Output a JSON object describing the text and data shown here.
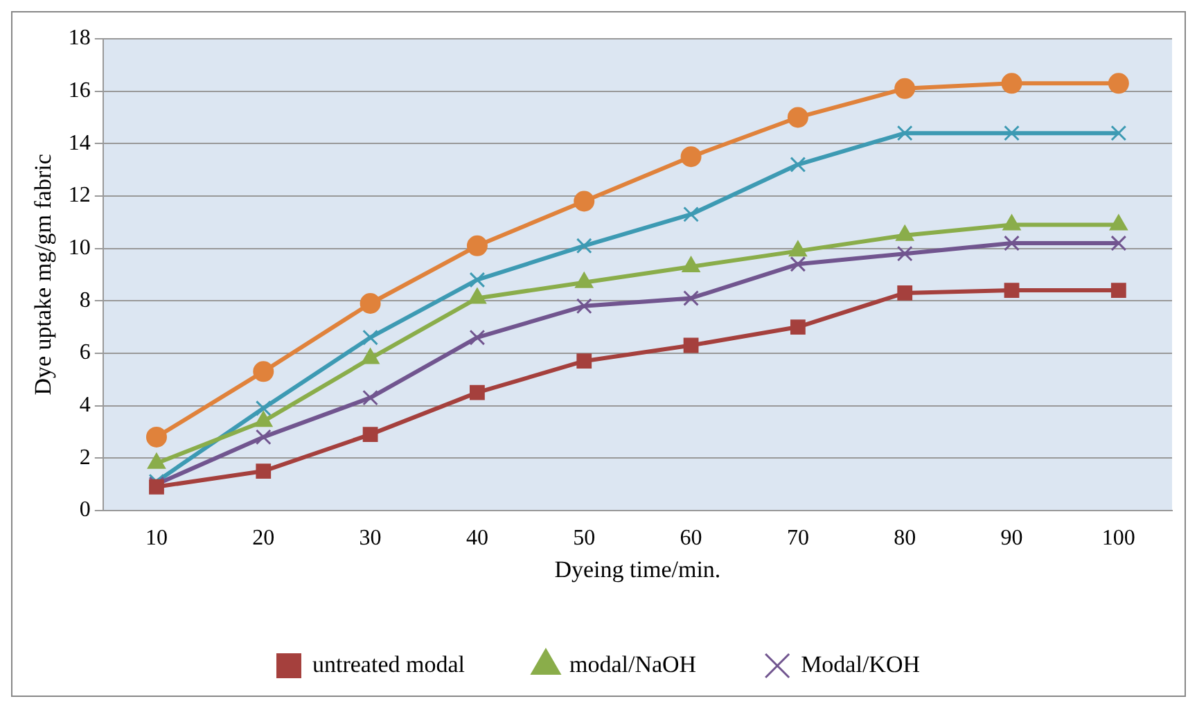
{
  "chart_data": {
    "type": "line",
    "xlabel": "Dyeing time/min.",
    "ylabel": "Dye uptake mg/gm fabric",
    "categories": [
      "10",
      "20",
      "30",
      "40",
      "50",
      "60",
      "70",
      "80",
      "90",
      "100"
    ],
    "series": [
      {
        "name": "untreated modal",
        "color": "#a5403d",
        "marker": "square",
        "values": [
          0.9,
          1.5,
          2.9,
          4.5,
          5.7,
          6.3,
          7.0,
          8.3,
          8.4,
          8.4
        ]
      },
      {
        "name": "modal/NaOH",
        "color": "#8aad4a",
        "marker": "triangle",
        "values": [
          1.8,
          3.4,
          5.8,
          8.1,
          8.7,
          9.3,
          9.9,
          10.5,
          10.9,
          10.9
        ]
      },
      {
        "name": "Modal/KOH",
        "color": "#71558f",
        "marker": "cross",
        "values": [
          1.0,
          2.8,
          4.3,
          6.6,
          7.8,
          8.1,
          9.4,
          9.8,
          10.2,
          10.2
        ]
      },
      {
        "color": "#3d9ab3",
        "marker": "cross",
        "values": [
          1.1,
          3.9,
          6.6,
          8.8,
          10.1,
          11.3,
          13.2,
          14.4,
          14.4,
          14.4
        ]
      },
      {
        "color": "#e0823b",
        "marker": "circle",
        "values": [
          2.8,
          5.3,
          7.9,
          10.1,
          11.8,
          13.5,
          15.0,
          16.1,
          16.3,
          16.3
        ]
      }
    ],
    "ylim": [
      0,
      18
    ],
    "yticks": [
      0,
      2,
      4,
      6,
      8,
      10,
      12,
      14,
      16,
      18
    ],
    "grid": "y",
    "legend": "bottom",
    "line_style": "solid"
  }
}
